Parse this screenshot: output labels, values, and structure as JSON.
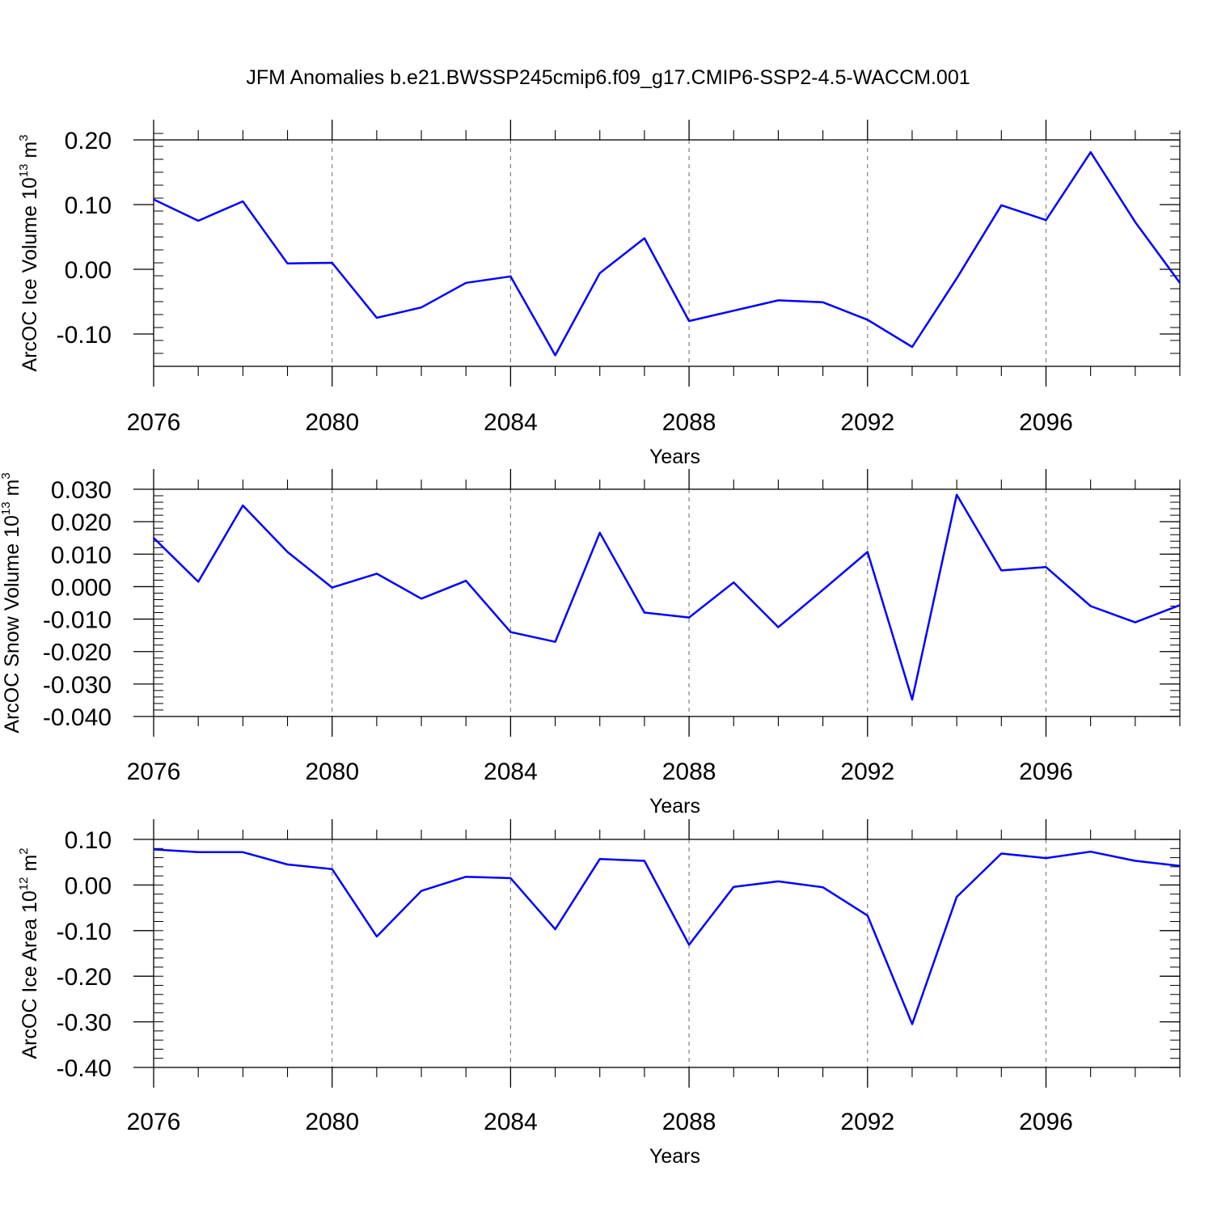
{
  "title": "JFM Anomalies b.e21.BWSSP245cmip6.f09_g17.CMIP6-SSP2-4.5-WACCM.001",
  "style": {
    "line_color": "#0000ff",
    "grid_color": "#808080",
    "axis_color": "#000000"
  },
  "chart_data": [
    {
      "type": "line",
      "ylabel": {
        "text": "ArcOC Ice Volume 10",
        "exp": "13",
        "unit": " m",
        "unit_exp": "3"
      },
      "xlabel": "Years",
      "xlim": [
        2076,
        2099
      ],
      "ylim": [
        -0.15,
        0.2
      ],
      "x_ticks": [
        2076,
        2080,
        2084,
        2088,
        2092,
        2096
      ],
      "x_tick_labels": [
        "2076",
        "2080",
        "2084",
        "2088",
        "2092",
        "2096"
      ],
      "y_ticks": [
        0.2,
        0.1,
        0.0,
        -0.1
      ],
      "y_tick_labels": [
        "0.20",
        "0.10",
        "0.00",
        "-0.10"
      ],
      "y_minor_step": 0.02,
      "grid_x": [
        2080,
        2084,
        2088,
        2092,
        2096
      ],
      "x": [
        2076,
        2077,
        2078,
        2079,
        2080,
        2081,
        2082,
        2083,
        2084,
        2085,
        2086,
        2087,
        2088,
        2089,
        2090,
        2091,
        2092,
        2093,
        2094,
        2095,
        2096,
        2097,
        2098,
        2099
      ],
      "y": [
        0.108,
        0.075,
        0.105,
        0.009,
        0.01,
        -0.075,
        -0.059,
        -0.021,
        -0.011,
        -0.133,
        -0.006,
        0.048,
        -0.08,
        -0.064,
        -0.048,
        -0.051,
        -0.078,
        -0.12,
        -0.014,
        0.099,
        0.076,
        0.181,
        0.073,
        -0.021
      ]
    },
    {
      "type": "line",
      "ylabel": {
        "text": "ArcOC Snow Volume 10",
        "exp": "13",
        "unit": " m",
        "unit_exp": "3"
      },
      "xlabel": "Years",
      "xlim": [
        2076,
        2099
      ],
      "ylim": [
        -0.04,
        0.03
      ],
      "x_ticks": [
        2076,
        2080,
        2084,
        2088,
        2092,
        2096
      ],
      "x_tick_labels": [
        "2076",
        "2080",
        "2084",
        "2088",
        "2092",
        "2096"
      ],
      "y_ticks": [
        0.03,
        0.02,
        0.01,
        0.0,
        -0.01,
        -0.02,
        -0.03,
        -0.04
      ],
      "y_tick_labels": [
        "0.030",
        "0.020",
        "0.010",
        "0.000",
        "-0.010",
        "-0.020",
        "-0.030",
        "-0.040"
      ],
      "y_minor_step": 0.002,
      "grid_x": [
        2080,
        2084,
        2088,
        2092,
        2096
      ],
      "x": [
        2076,
        2077,
        2078,
        2079,
        2080,
        2081,
        2082,
        2083,
        2084,
        2085,
        2086,
        2087,
        2088,
        2089,
        2090,
        2091,
        2092,
        2093,
        2094,
        2095,
        2096,
        2097,
        2098,
        2099
      ],
      "y": [
        0.015,
        0.0015,
        0.025,
        0.0107,
        -0.0003,
        0.004,
        -0.0037,
        0.0018,
        -0.014,
        -0.017,
        0.0166,
        -0.008,
        -0.0095,
        0.0013,
        -0.0125,
        -0.001,
        0.0107,
        -0.0348,
        0.0283,
        0.005,
        0.006,
        -0.006,
        -0.011,
        -0.0057
      ]
    },
    {
      "type": "line",
      "ylabel": {
        "text": "ArcOC Ice Area 10",
        "exp": "12",
        "unit": " m",
        "unit_exp": "2"
      },
      "xlabel": "Years",
      "xlim": [
        2076,
        2099
      ],
      "ylim": [
        -0.4,
        0.1
      ],
      "x_ticks": [
        2076,
        2080,
        2084,
        2088,
        2092,
        2096
      ],
      "x_tick_labels": [
        "2076",
        "2080",
        "2084",
        "2088",
        "2092",
        "2096"
      ],
      "y_ticks": [
        0.1,
        0.0,
        -0.1,
        -0.2,
        -0.3,
        -0.4
      ],
      "y_tick_labels": [
        "0.10",
        "0.00",
        "-0.10",
        "-0.20",
        "-0.30",
        "-0.40"
      ],
      "y_minor_step": 0.02,
      "grid_x": [
        2080,
        2084,
        2088,
        2092,
        2096
      ],
      "x": [
        2076,
        2077,
        2078,
        2079,
        2080,
        2081,
        2082,
        2083,
        2084,
        2085,
        2086,
        2087,
        2088,
        2089,
        2090,
        2091,
        2092,
        2093,
        2094,
        2095,
        2096,
        2097,
        2098,
        2099
      ],
      "y": [
        0.078,
        0.072,
        0.072,
        0.045,
        0.035,
        -0.113,
        -0.013,
        0.018,
        0.015,
        -0.097,
        0.057,
        0.053,
        -0.131,
        -0.004,
        0.008,
        -0.005,
        -0.067,
        -0.305,
        -0.026,
        0.069,
        0.059,
        0.073,
        0.053,
        0.042
      ]
    }
  ]
}
